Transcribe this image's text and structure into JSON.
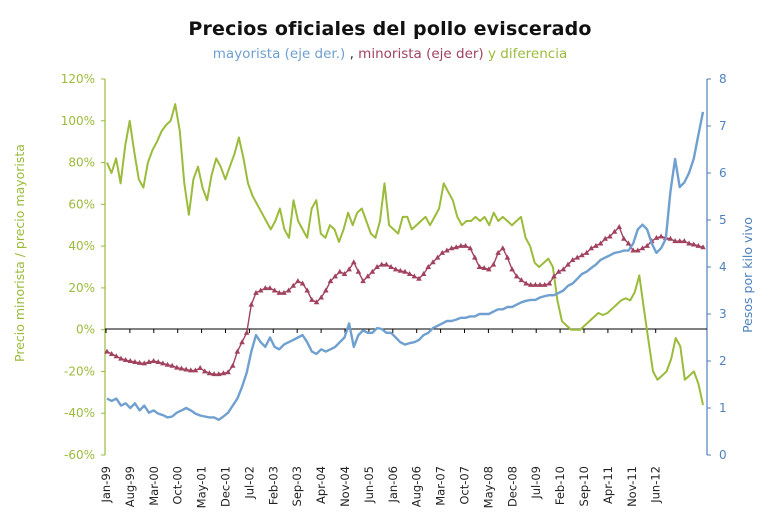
{
  "chart_data": {
    "type": "line",
    "title": "Precios oficiales del pollo eviscerado",
    "subtitle": {
      "part1": "mayorista (eje der.)",
      "sep1": " , ",
      "part2": "minorista (eje der)",
      "sep2": " y ",
      "part3": "diferencia"
    },
    "ylabel_left": "Precio minorista / precio mayorista",
    "ylabel_right": "Pesos por kilo vivo",
    "y_left_ticks": [
      "120%",
      "100%",
      "80%",
      "60%",
      "40%",
      "20%",
      "0%",
      "-20%",
      "-40%",
      "-60%"
    ],
    "y_left_lim": [
      -60,
      120
    ],
    "y_right_ticks": [
      "8",
      "7",
      "6",
      "5",
      "4",
      "3",
      "2",
      "1",
      "0"
    ],
    "y_right_lim": [
      0,
      8
    ],
    "x_tick_labels": [
      "Jan-99",
      "Aug-99",
      "Mar-00",
      "Oct-00",
      "May-01",
      "Dec-01",
      "Jul-02",
      "Feb-03",
      "Sep-03",
      "Apr-04",
      "Nov-04",
      "Jun-05",
      "Jan-06",
      "Aug-06",
      "Mar-07",
      "Oct-07",
      "May-08",
      "Dec-08",
      "Jul-09",
      "Feb-10",
      "Sep-10",
      "Apr-11",
      "Nov-11",
      "Jun-12"
    ],
    "colors": {
      "mayorista": "#6fa0cf",
      "minorista": "#a0425e",
      "diferencia": "#9bbb3b",
      "left_axis": "#9bbb3b",
      "right_axis": "#4f81bd"
    },
    "series": [
      {
        "name": "diferencia",
        "axis": "left",
        "unit": "%",
        "values": [
          80,
          75,
          82,
          70,
          88,
          100,
          85,
          72,
          68,
          80,
          86,
          90,
          95,
          98,
          100,
          108,
          95,
          70,
          55,
          72,
          78,
          68,
          62,
          74,
          82,
          78,
          72,
          78,
          84,
          92,
          82,
          70,
          64,
          60,
          56,
          52,
          48,
          52,
          58,
          48,
          44,
          62,
          52,
          48,
          44,
          58,
          62,
          46,
          44,
          50,
          48,
          42,
          48,
          56,
          50,
          56,
          58,
          52,
          46,
          44,
          52,
          70,
          50,
          48,
          46,
          54,
          54,
          48,
          50,
          52,
          54,
          50,
          54,
          58,
          70,
          66,
          62,
          54,
          50,
          52,
          52,
          54,
          52,
          54,
          50,
          56,
          52,
          54,
          52,
          50,
          52,
          54,
          44,
          40,
          32,
          30,
          32,
          34,
          30,
          14,
          4,
          2,
          0,
          0,
          0,
          2,
          4,
          6,
          8,
          7,
          8,
          10,
          12,
          14,
          15,
          14,
          18,
          26,
          10,
          -5,
          -20,
          -24,
          -22,
          -20,
          -14,
          -4,
          -8,
          -24,
          -22,
          -20,
          -26,
          -36
        ]
      },
      {
        "name": "minorista",
        "axis": "right",
        "unit": "pesos/kg",
        "values": [
          2.2,
          2.15,
          2.1,
          2.05,
          2.02,
          2.0,
          1.98,
          1.96,
          1.95,
          1.98,
          2.0,
          1.98,
          1.95,
          1.92,
          1.9,
          1.86,
          1.84,
          1.82,
          1.8,
          1.8,
          1.85,
          1.78,
          1.74,
          1.72,
          1.72,
          1.74,
          1.76,
          1.9,
          2.2,
          2.4,
          2.6,
          3.2,
          3.45,
          3.5,
          3.55,
          3.55,
          3.5,
          3.45,
          3.45,
          3.5,
          3.6,
          3.7,
          3.65,
          3.5,
          3.3,
          3.25,
          3.35,
          3.5,
          3.7,
          3.8,
          3.9,
          3.85,
          3.95,
          4.1,
          3.9,
          3.7,
          3.8,
          3.9,
          4.0,
          4.05,
          4.05,
          4.0,
          3.95,
          3.92,
          3.9,
          3.85,
          3.8,
          3.75,
          3.85,
          4.0,
          4.1,
          4.2,
          4.3,
          4.35,
          4.4,
          4.42,
          4.45,
          4.45,
          4.4,
          4.2,
          4.0,
          3.98,
          3.95,
          4.05,
          4.3,
          4.4,
          4.2,
          3.95,
          3.8,
          3.72,
          3.65,
          3.62,
          3.62,
          3.62,
          3.62,
          3.65,
          3.8,
          3.9,
          3.95,
          4.05,
          4.15,
          4.2,
          4.25,
          4.3,
          4.4,
          4.45,
          4.5,
          4.6,
          4.65,
          4.75,
          4.85,
          4.6,
          4.5,
          4.35,
          4.35,
          4.4,
          4.45,
          4.55,
          4.62,
          4.65,
          4.62,
          4.6,
          4.55,
          4.55,
          4.55,
          4.5,
          4.48,
          4.45,
          4.42
        ]
      },
      {
        "name": "mayorista",
        "axis": "right",
        "unit": "pesos/kg",
        "values": [
          1.2,
          1.15,
          1.2,
          1.05,
          1.1,
          1.0,
          1.1,
          0.95,
          1.05,
          0.9,
          0.95,
          0.88,
          0.85,
          0.8,
          0.82,
          0.9,
          0.95,
          1.0,
          0.95,
          0.88,
          0.84,
          0.82,
          0.8,
          0.8,
          0.75,
          0.82,
          0.9,
          1.05,
          1.2,
          1.45,
          1.75,
          2.2,
          2.55,
          2.4,
          2.3,
          2.5,
          2.3,
          2.25,
          2.35,
          2.4,
          2.45,
          2.5,
          2.55,
          2.4,
          2.2,
          2.15,
          2.25,
          2.2,
          2.25,
          2.3,
          2.4,
          2.5,
          2.8,
          2.3,
          2.55,
          2.65,
          2.6,
          2.6,
          2.7,
          2.68,
          2.6,
          2.6,
          2.5,
          2.4,
          2.35,
          2.38,
          2.4,
          2.45,
          2.55,
          2.6,
          2.7,
          2.75,
          2.8,
          2.85,
          2.85,
          2.88,
          2.92,
          2.92,
          2.95,
          2.95,
          3.0,
          3.0,
          3.0,
          3.05,
          3.1,
          3.1,
          3.15,
          3.15,
          3.2,
          3.25,
          3.28,
          3.3,
          3.3,
          3.35,
          3.38,
          3.4,
          3.4,
          3.45,
          3.5,
          3.6,
          3.65,
          3.75,
          3.85,
          3.9,
          3.98,
          4.05,
          4.15,
          4.2,
          4.25,
          4.3,
          4.32,
          4.35,
          4.35,
          4.5,
          4.8,
          4.9,
          4.8,
          4.5,
          4.3,
          4.4,
          4.6,
          5.6,
          6.3,
          5.7,
          5.8,
          6.0,
          6.3,
          6.8,
          7.3
        ]
      }
    ]
  }
}
